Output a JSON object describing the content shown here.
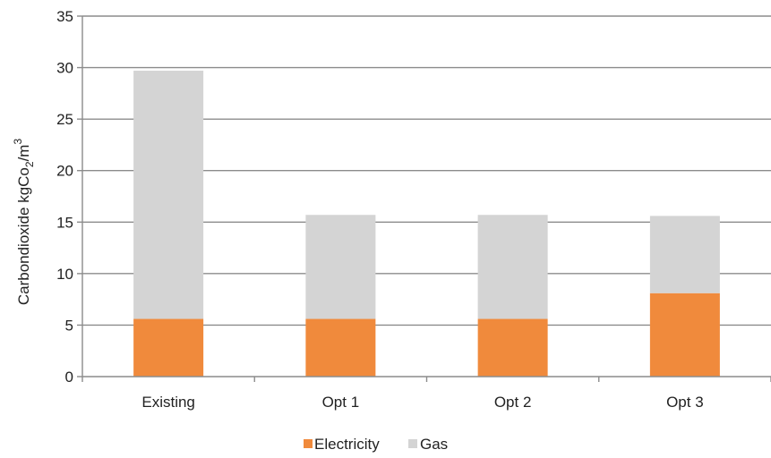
{
  "chart_data": {
    "type": "bar",
    "stacked": true,
    "categories": [
      "Existing",
      "Opt 1",
      "Opt 2",
      "Opt 3"
    ],
    "series": [
      {
        "name": "Electricity",
        "values": [
          5.6,
          5.6,
          5.6,
          8.1
        ],
        "color": "#f08a3c"
      },
      {
        "name": "Gas",
        "values": [
          24.1,
          10.1,
          10.1,
          7.5
        ],
        "color": "#d4d4d4"
      }
    ],
    "ylabel_parts": {
      "main": "Carbondioxide kgCo",
      "sub": "2",
      "mid": "/m",
      "sup": "3"
    },
    "ylim": [
      0,
      35
    ],
    "yticks": [
      "0",
      "5",
      "10",
      "15",
      "20",
      "25",
      "30",
      "35"
    ],
    "grid": true,
    "legend_position": "bottom-center"
  }
}
